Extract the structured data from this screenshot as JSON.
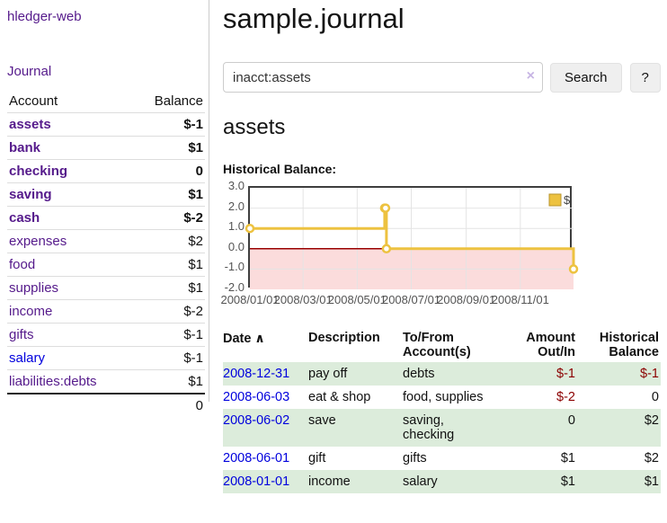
{
  "app": {
    "title": "hledger-web"
  },
  "sidebar": {
    "nav_journal": "Journal",
    "accounts_table": {
      "headers": [
        "Account",
        "Balance"
      ],
      "rows": [
        {
          "account": "assets",
          "balance": "$-1",
          "indent": 1,
          "bold": true,
          "balance_style": "negative"
        },
        {
          "account": "bank",
          "balance": "$1",
          "indent": 2,
          "bold": true,
          "balance_style": "normal"
        },
        {
          "account": "checking",
          "balance": "0",
          "indent": 3,
          "bold": true,
          "balance_style": "normal"
        },
        {
          "account": "saving",
          "balance": "$1",
          "indent": 3,
          "bold": true,
          "balance_style": "normal"
        },
        {
          "account": "cash",
          "balance": "$-2",
          "indent": 2,
          "bold": true,
          "balance_style": "negative"
        },
        {
          "account": "expenses",
          "balance": "$2",
          "indent": 1,
          "bold": false,
          "balance_style": "normal"
        },
        {
          "account": "food",
          "balance": "$1",
          "indent": 2,
          "bold": false,
          "balance_style": "normal"
        },
        {
          "account": "supplies",
          "balance": "$1",
          "indent": 2,
          "bold": false,
          "balance_style": "normal"
        },
        {
          "account": "income",
          "balance": "$-2",
          "indent": 1,
          "bold": false,
          "balance_style": "muted-negative"
        },
        {
          "account": "gifts",
          "balance": "$-1",
          "indent": 2,
          "bold": false,
          "balance_style": "muted-negative"
        },
        {
          "account": "salary",
          "balance": "$-1",
          "indent": 2,
          "bold": false,
          "balance_style": "muted-negative",
          "link_color": "blue"
        },
        {
          "account": "liabilities:debts",
          "balance": "$1",
          "indent": 1,
          "bold": false,
          "balance_style": "normal"
        }
      ],
      "total": "0"
    }
  },
  "header": {
    "title": "sample.journal"
  },
  "search": {
    "value": "inacct:assets",
    "clear_icon": "×",
    "search_label": "Search",
    "help_label": "?"
  },
  "account_page": {
    "title": "assets",
    "chart_label": "Historical Balance:"
  },
  "chart_data": {
    "type": "line",
    "title": "Historical Balance:",
    "step": true,
    "series": [
      {
        "name": "$",
        "color": "#edc240",
        "points": [
          [
            "2008-01-01",
            1
          ],
          [
            "2008-06-01",
            2
          ],
          [
            "2008-06-02",
            2
          ],
          [
            "2008-06-03",
            0
          ],
          [
            "2008-12-31",
            -1
          ]
        ]
      }
    ],
    "x_ticks": [
      "2008/01/01",
      "2008/03/01",
      "2008/05/01",
      "2008/07/01",
      "2008/09/01",
      "2008/11/01"
    ],
    "y_ticks": [
      3.0,
      2.0,
      1.0,
      0.0,
      -1.0,
      -2.0
    ],
    "xlim": [
      "2008-01-01",
      "2008-12-31"
    ],
    "ylim": [
      -2,
      3
    ],
    "grid": true,
    "legend": {
      "label": "$",
      "position": "top-right"
    },
    "negative_region_color": "#fbdcdc",
    "zero_line_color": "#990000"
  },
  "register": {
    "headers": [
      {
        "label": "Date",
        "sort_icon": "∧",
        "align": "left"
      },
      {
        "label": "Description",
        "align": "left"
      },
      {
        "label": "To/From Account(s)",
        "align": "left"
      },
      {
        "label": "Amount Out/In",
        "align": "right"
      },
      {
        "label": "Historical Balance",
        "align": "right"
      }
    ],
    "rows": [
      {
        "date": "2008-12-31",
        "description": "pay off",
        "accounts": "debts",
        "amount": "$-1",
        "amount_style": "negative",
        "balance": "$-1",
        "balance_style": "negative"
      },
      {
        "date": "2008-06-03",
        "description": "eat & shop",
        "accounts": "food, supplies",
        "amount": "$-2",
        "amount_style": "negative",
        "balance": "0",
        "balance_style": "normal"
      },
      {
        "date": "2008-06-02",
        "description": "save",
        "accounts": "saving,\ncheckin​g",
        "amount": "0",
        "amount_style": "normal",
        "balance": "$2",
        "balance_style": "normal"
      },
      {
        "date": "2008-06-01",
        "description": "gift",
        "accounts": "gifts",
        "amount": "$1",
        "amount_style": "normal",
        "balance": "$2",
        "balance_style": "normal"
      },
      {
        "date": "2008-01-01",
        "description": "income",
        "accounts": "salary",
        "amount": "$1",
        "amount_style": "normal",
        "balance": "$1",
        "balance_style": "normal"
      }
    ]
  },
  "colors": {
    "link_purple": "#551a8b",
    "link_blue": "#0000dd",
    "negative": "#8b0000",
    "muted_negative": "#b36b6b",
    "row_stripe_green": "#dcecdb",
    "series_yellow": "#edc240",
    "chart_negative_fill": "#fbdcdc",
    "zero_line": "#990000"
  }
}
